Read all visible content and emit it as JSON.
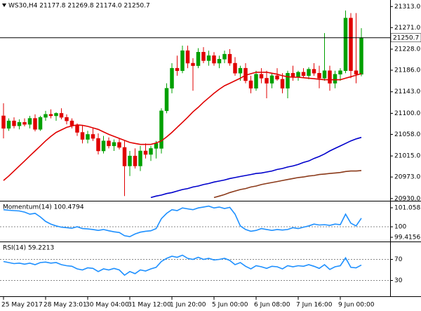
{
  "chart_data": [
    {
      "type": "candlestick",
      "title": "WS30,H4  21177.8 21269.8 21174.0 21250.7",
      "bull_color": "#00a000",
      "bear_color": "#e00000",
      "categories": [
        "25 May 2017",
        null,
        null,
        null,
        null,
        null,
        null,
        null,
        "28 May 23:01",
        null,
        null,
        null,
        null,
        null,
        null,
        null,
        "30 May 04:00",
        null,
        null,
        null,
        null,
        null,
        null,
        null,
        "31 May 12:00",
        null,
        null,
        null,
        null,
        null,
        null,
        null,
        "1 Jun 20:00",
        null,
        null,
        null,
        null,
        null,
        null,
        null,
        "5 Jun 00:00",
        null,
        null,
        null,
        null,
        null,
        null,
        null,
        "6 Jun 08:00",
        null,
        null,
        null,
        null,
        null,
        null,
        null,
        "7 Jun 16:00",
        null,
        null,
        null,
        null,
        null,
        null,
        null,
        "9 Jun 00:00",
        null,
        null,
        null,
        null
      ],
      "open": [
        21095,
        21070,
        21085,
        21075,
        21082,
        21078,
        21090,
        21068,
        21092,
        21098,
        21095,
        21100,
        21092,
        21085,
        21076,
        21062,
        21048,
        21058,
        21050,
        21025,
        21045,
        21035,
        21042,
        21032,
        20995,
        21015,
        20995,
        21025,
        21018,
        21030,
        21030,
        21105,
        21150,
        21190,
        21185,
        21225,
        21200,
        21195,
        21222,
        21205,
        21215,
        21200,
        21208,
        21218,
        21200,
        21180,
        21190,
        21165,
        21150,
        21178,
        21170,
        21160,
        21175,
        21168,
        21150,
        21180,
        21172,
        21182,
        21175,
        21188,
        21180,
        21170,
        21185,
        21160,
        21178,
        21185,
        21290,
        21185,
        21177.8
      ],
      "high": [
        21120,
        21090,
        21092,
        21088,
        21090,
        21095,
        21098,
        21095,
        21105,
        21108,
        21102,
        21110,
        21098,
        21090,
        21080,
        21075,
        21065,
        21070,
        21060,
        21055,
        21052,
        21048,
        21050,
        21045,
        21025,
        21030,
        21035,
        21040,
        21035,
        21045,
        21110,
        21160,
        21200,
        21215,
        21235,
        21235,
        21210,
        21230,
        21232,
        21225,
        21222,
        21215,
        21225,
        21228,
        21212,
        21195,
        21200,
        21175,
        21185,
        21190,
        21185,
        21180,
        21190,
        21180,
        21185,
        21195,
        21185,
        21190,
        21192,
        21200,
        21195,
        21260,
        21195,
        21185,
        21190,
        21305,
        21300,
        21300,
        21269.8
      ],
      "low": [
        21050,
        21065,
        21070,
        21068,
        21074,
        21070,
        21064,
        21065,
        21085,
        21090,
        21085,
        21088,
        21078,
        21070,
        21055,
        21040,
        21040,
        21045,
        21018,
        21020,
        21030,
        21025,
        21028,
        20935,
        20975,
        20990,
        20985,
        21010,
        21005,
        21010,
        21020,
        21100,
        21140,
        21175,
        21180,
        21190,
        21145,
        21190,
        21200,
        21195,
        21195,
        21190,
        21200,
        21195,
        21175,
        21165,
        21160,
        21140,
        21145,
        21160,
        21130,
        21150,
        21165,
        21140,
        21130,
        21165,
        21165,
        21170,
        21168,
        21175,
        21150,
        21165,
        21145,
        21150,
        21165,
        21180,
        21170,
        21160,
        21174
      ],
      "close": [
        21070,
        21085,
        21075,
        21082,
        21078,
        21090,
        21068,
        21092,
        21098,
        21095,
        21100,
        21092,
        21085,
        21076,
        21062,
        21048,
        21058,
        21050,
        21025,
        21045,
        21035,
        21042,
        21032,
        20995,
        21015,
        20995,
        21025,
        21018,
        21030,
        21040,
        21105,
        21150,
        21190,
        21185,
        21225,
        21200,
        21195,
        21222,
        21205,
        21215,
        21200,
        21208,
        21218,
        21200,
        21180,
        21190,
        21165,
        21150,
        21178,
        21170,
        21160,
        21175,
        21168,
        21150,
        21180,
        21172,
        21182,
        21175,
        21188,
        21180,
        21170,
        21185,
        21160,
        21178,
        21185,
        21290,
        21185,
        21178,
        21250.7
      ],
      "series": [
        {
          "color": "#e00000",
          "values": [
            20966,
            20975,
            20985,
            20995,
            21005,
            21015,
            21025,
            21035,
            21045,
            21054,
            21062,
            21067,
            21072,
            21075,
            21077,
            21076,
            21074,
            21071,
            21068,
            21063,
            21058,
            21054,
            21050,
            21046,
            21042,
            21040,
            21038,
            21038,
            21038,
            21041,
            21045,
            21053,
            21062,
            21072,
            21082,
            21092,
            21103,
            21112,
            21122,
            21131,
            21140,
            21148,
            21155,
            21160,
            21165,
            21170,
            21176,
            21179,
            21182,
            21182,
            21182,
            21180,
            21178,
            21175,
            21173,
            21172,
            21172,
            21171,
            21170,
            21169,
            21168,
            21167,
            21167,
            21167,
            21167,
            21170,
            21173,
            21176,
            21179
          ]
        },
        {
          "color": "#0000cc",
          "values": [
            null,
            null,
            null,
            null,
            null,
            null,
            null,
            null,
            null,
            null,
            null,
            null,
            null,
            null,
            null,
            null,
            null,
            null,
            null,
            null,
            null,
            null,
            null,
            null,
            null,
            null,
            null,
            null,
            20932,
            20935,
            20937,
            20940,
            20942,
            20945,
            20948,
            20950,
            20953,
            20955,
            20958,
            20960,
            20963,
            20965,
            20967,
            20970,
            20972,
            20974,
            20976,
            20978,
            20980,
            20981,
            20983,
            20985,
            20988,
            20990,
            20993,
            20995,
            20998,
            21002,
            21005,
            21010,
            21014,
            21019,
            21025,
            21030,
            21035,
            21040,
            21045,
            21049,
            21052
          ]
        },
        {
          "color": "#8b3a1a",
          "values": [
            null,
            null,
            null,
            null,
            null,
            null,
            null,
            null,
            null,
            null,
            null,
            null,
            null,
            null,
            null,
            null,
            null,
            null,
            null,
            null,
            null,
            null,
            null,
            null,
            null,
            null,
            null,
            null,
            null,
            null,
            null,
            null,
            null,
            null,
            null,
            null,
            null,
            null,
            null,
            null,
            20932,
            20935,
            20938,
            20942,
            20945,
            20948,
            20950,
            20953,
            20955,
            20958,
            20960,
            20962,
            20964,
            20966,
            20968,
            20970,
            20972,
            20973,
            20975,
            20976,
            20978,
            20979,
            20980,
            20981,
            20982,
            20984,
            20985,
            20985,
            20986
          ]
        }
      ],
      "last_price": 21250.7,
      "ylim": [
        20927,
        21326
      ],
      "yticks": [
        {
          "value": 21313,
          "label": "21313.0"
        },
        {
          "value": 21271,
          "label": "21271.0"
        },
        {
          "value": 21228,
          "label": "21228.0"
        },
        {
          "value": 21186,
          "label": "21186.0"
        },
        {
          "value": 21143,
          "label": "21143.0"
        },
        {
          "value": 21100,
          "label": "21100.0"
        },
        {
          "value": 21058,
          "label": "21058.0"
        },
        {
          "value": 21015,
          "label": "21015.0"
        },
        {
          "value": 20973,
          "label": "20973.0"
        },
        {
          "value": 20930,
          "label": "20930.0"
        }
      ]
    },
    {
      "type": "line",
      "title": "Momentum(14) 100.4794",
      "color": "#1e90ff",
      "values": [
        100.95,
        100.92,
        100.9,
        100.88,
        100.82,
        100.7,
        100.75,
        100.55,
        100.3,
        100.15,
        100.05,
        99.98,
        99.95,
        99.92,
        100.0,
        99.9,
        99.88,
        99.85,
        99.8,
        99.85,
        99.78,
        99.72,
        99.68,
        99.5,
        99.45,
        99.6,
        99.7,
        99.75,
        99.78,
        99.9,
        100.45,
        100.75,
        100.95,
        100.9,
        101.05,
        101.0,
        100.95,
        101.05,
        101.1,
        101.15,
        101.05,
        101.1,
        101.02,
        101.08,
        100.7,
        100.05,
        99.85,
        99.75,
        99.8,
        99.9,
        99.85,
        99.8,
        99.85,
        99.82,
        99.85,
        99.95,
        99.9,
        99.98,
        100.05,
        100.15,
        100.1,
        100.12,
        100.08,
        100.15,
        100.12,
        100.7,
        100.2,
        100.05,
        100.4794
      ],
      "ylim": [
        99.22,
        101.37
      ],
      "yticks": [
        101.0587,
        100,
        99.4156
      ],
      "levels": [
        100
      ]
    },
    {
      "type": "line",
      "title": "RSI(14) 59.2213",
      "color": "#1e90ff",
      "values": [
        66,
        64,
        62,
        63,
        61,
        63,
        60,
        64,
        65,
        63,
        64,
        60,
        58,
        57,
        52,
        50,
        54,
        53,
        47,
        52,
        50,
        53,
        50,
        40,
        47,
        43,
        50,
        48,
        52,
        55,
        66,
        72,
        76,
        74,
        78,
        72,
        70,
        74,
        70,
        72,
        69,
        70,
        72,
        68,
        60,
        64,
        57,
        52,
        58,
        56,
        53,
        57,
        56,
        52,
        58,
        56,
        58,
        57,
        60,
        57,
        53,
        60,
        51,
        56,
        58,
        73,
        55,
        54,
        59.2213
      ],
      "ylim": [
        0,
        100
      ],
      "yticks": [
        70,
        30
      ],
      "levels": [
        70,
        30
      ]
    }
  ]
}
